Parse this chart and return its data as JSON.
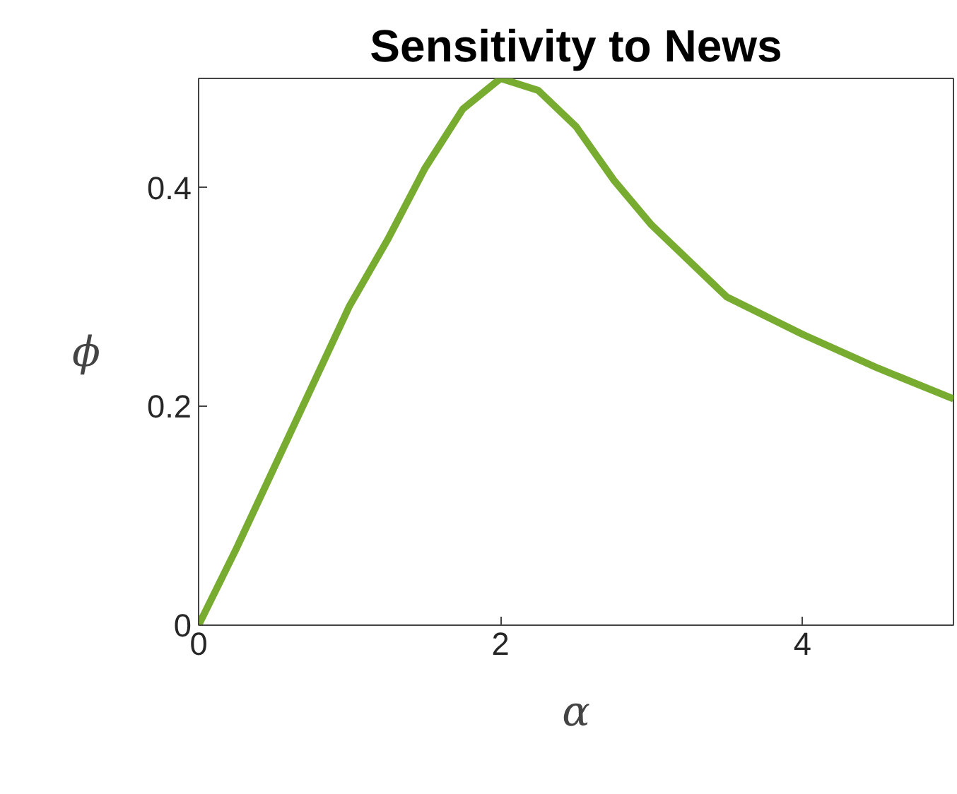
{
  "chart_data": {
    "type": "line",
    "title": "Sensitivity to News",
    "xlabel": "α",
    "ylabel": "ϕ",
    "x": [
      0,
      0.25,
      0.5,
      0.75,
      1,
      1.25,
      1.5,
      1.75,
      2,
      2.25,
      2.5,
      2.75,
      3,
      3.5,
      4,
      4.5,
      5
    ],
    "series": [
      {
        "color": "#77ac30",
        "values": [
          0,
          0.07,
          0.144,
          0.218,
          0.292,
          0.352,
          0.418,
          0.472,
          0.5,
          0.489,
          0.456,
          0.407,
          0.366,
          0.3,
          0.266,
          0.235,
          0.207
        ]
      }
    ],
    "xlim": [
      0,
      5
    ],
    "ylim": [
      0,
      0.5
    ],
    "xticks": [
      0,
      2,
      4
    ],
    "yticks": [
      0,
      0.2,
      0.4
    ],
    "marker": "none",
    "line_style": "solid"
  }
}
